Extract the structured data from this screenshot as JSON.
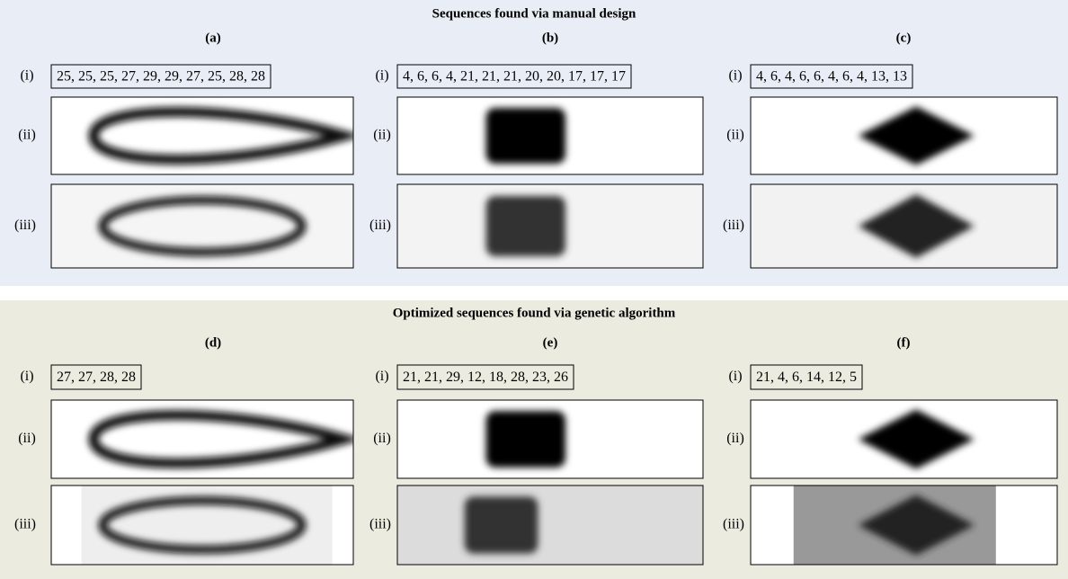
{
  "sections": [
    {
      "title": "Sequences found via manual design",
      "panels": [
        {
          "label": "(a)",
          "sequence": "25, 25, 25, 27, 29, 29, 27, 25, 28, 28"
        },
        {
          "label": "(b)",
          "sequence": "4, 6, 6, 4, 21, 21, 21, 20, 20, 17, 17, 17"
        },
        {
          "label": "(c)",
          "sequence": "4, 6, 4, 6, 6, 4, 6, 4, 13, 13"
        }
      ]
    },
    {
      "title": "Optimized sequences found via genetic algorithm",
      "panels": [
        {
          "label": "(d)",
          "sequence": "27, 27, 28, 28"
        },
        {
          "label": "(e)",
          "sequence": "21, 21, 29, 12, 18, 28, 23, 26"
        },
        {
          "label": "(f)",
          "sequence": "21, 4, 6, 14, 12, 5"
        }
      ]
    }
  ],
  "row_labels": [
    "(i)",
    "(ii)",
    "(iii)"
  ]
}
